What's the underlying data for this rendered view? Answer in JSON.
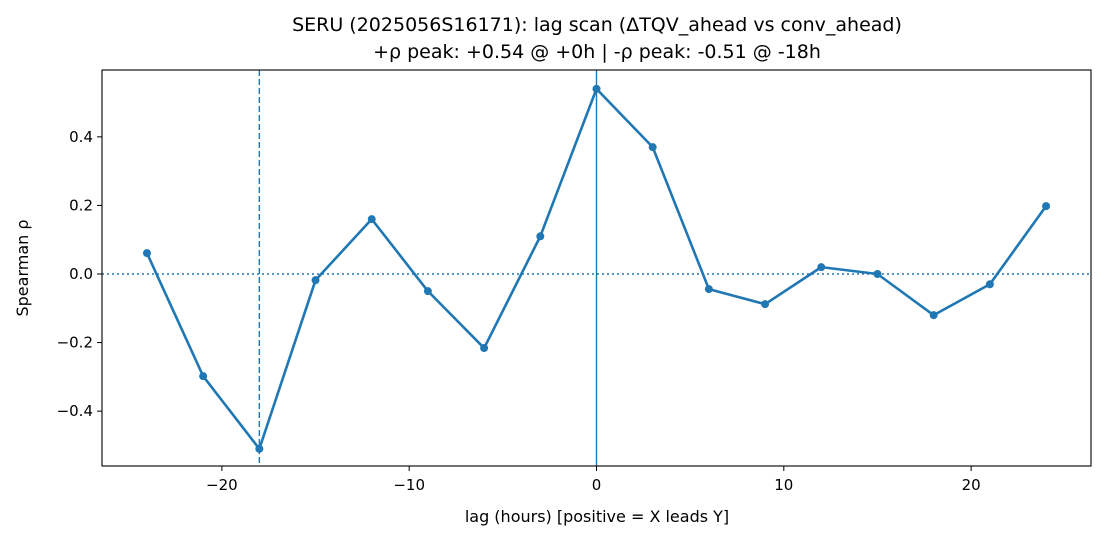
{
  "chart_data": {
    "type": "line",
    "title": "SERU (2025056S16171): lag scan (ΔTQV_ahead vs conv_ahead)",
    "subtitle": "+ρ peak: +0.54 @ +0h | -ρ peak: -0.51 @ -18h",
    "xlabel": "lag (hours) [positive = X leads Y]",
    "ylabel": "Spearman ρ",
    "xlim": [
      -26.4,
      26.4
    ],
    "ylim": [
      -0.56,
      0.595
    ],
    "xticks": [
      -20,
      -10,
      0,
      10,
      20
    ],
    "xtick_labels": [
      "−20",
      "−10",
      "0",
      "10",
      "20"
    ],
    "yticks": [
      -0.4,
      -0.2,
      0.0,
      0.2,
      0.4
    ],
    "ytick_labels": [
      "−0.4",
      "−0.2",
      "0.0",
      "0.2",
      "0.4"
    ],
    "grid": false,
    "color": "#1f77b4",
    "x": [
      -24,
      -21,
      -18,
      -15,
      -12,
      -9,
      -6,
      -3,
      0,
      3,
      6,
      9,
      12,
      15,
      18,
      21,
      24
    ],
    "values": [
      0.061,
      -0.298,
      -0.51,
      -0.018,
      0.16,
      -0.05,
      -0.216,
      0.11,
      0.54,
      0.37,
      -0.044,
      -0.088,
      0.02,
      0.0,
      -0.12,
      -0.03,
      0.198
    ],
    "reference_lines": [
      {
        "orientation": "horizontal",
        "value": 0,
        "style": "dotted"
      },
      {
        "orientation": "vertical",
        "value": 0,
        "style": "solid"
      },
      {
        "orientation": "vertical",
        "value": -18,
        "style": "dashed"
      }
    ]
  }
}
